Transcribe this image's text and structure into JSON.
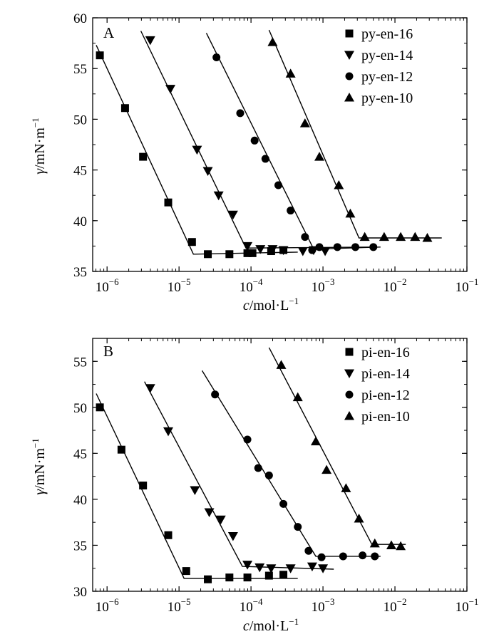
{
  "chart_data": [
    {
      "panel": "A",
      "type": "scatter",
      "x_scale": "log",
      "xlabel_var": "c",
      "xlabel_unit": "/mol·L",
      "xlabel_exp": "−1",
      "ylabel_var": "γ",
      "ylabel_unit": "/mN·m",
      "ylabel_exp": "−1",
      "xlim_exp": [
        -6.2,
        -1
      ],
      "ylim": [
        35,
        60
      ],
      "xticks": [
        {
          "exp": -6,
          "label": "10",
          "sup": "−6"
        },
        {
          "exp": -5,
          "label": "10",
          "sup": "−5"
        },
        {
          "exp": -4,
          "label": "10",
          "sup": "−4"
        },
        {
          "exp": -3,
          "label": "10",
          "sup": "−3"
        },
        {
          "exp": -2,
          "label": "10",
          "sup": "−2"
        },
        {
          "exp": -1,
          "label": "10",
          "sup": "−1"
        }
      ],
      "yticks": [
        {
          "value": 35,
          "label": "35"
        },
        {
          "value": 40,
          "label": "40"
        },
        {
          "value": 45,
          "label": "45"
        },
        {
          "value": 50,
          "label": "50"
        },
        {
          "value": 55,
          "label": "55"
        },
        {
          "value": 60,
          "label": "60"
        }
      ],
      "series": [
        {
          "name": "py-en-16",
          "marker": "square",
          "points": [
            [
              -6.1,
              56.3
            ],
            [
              -5.75,
              51.1
            ],
            [
              -5.5,
              46.3
            ],
            [
              -5.15,
              41.8
            ],
            [
              -4.82,
              37.9
            ],
            [
              -4.6,
              36.7
            ],
            [
              -4.3,
              36.7
            ],
            [
              -4.05,
              36.8
            ],
            [
              -3.98,
              36.8
            ],
            [
              -3.72,
              37.0
            ],
            [
              -3.55,
              37.1
            ]
          ],
          "fit": [
            [
              -6.15,
              57.3
            ],
            [
              -4.8,
              36.7
            ],
            [
              -3.35,
              36.9
            ]
          ]
        },
        {
          "name": "py-en-14",
          "marker": "triangle-down",
          "points": [
            [
              -5.4,
              57.8
            ],
            [
              -5.12,
              53.0
            ],
            [
              -4.75,
              47.0
            ],
            [
              -4.6,
              44.9
            ],
            [
              -4.45,
              42.5
            ],
            [
              -4.25,
              40.6
            ],
            [
              -4.05,
              37.5
            ],
            [
              -3.87,
              37.2
            ],
            [
              -3.7,
              37.2
            ],
            [
              -3.55,
              37.1
            ],
            [
              -3.28,
              37.0
            ],
            [
              -3.13,
              37.1
            ],
            [
              -2.97,
              37.0
            ]
          ],
          "fit": [
            [
              -5.53,
              58.7
            ],
            [
              -4.07,
              37.3
            ],
            [
              -2.3,
              37.4
            ]
          ]
        },
        {
          "name": "py-en-12",
          "marker": "circle",
          "points": [
            [
              -4.48,
              56.1
            ],
            [
              -4.15,
              50.6
            ],
            [
              -3.95,
              47.9
            ],
            [
              -3.8,
              46.1
            ],
            [
              -3.62,
              43.5
            ],
            [
              -3.45,
              41.0
            ],
            [
              -3.25,
              38.4
            ],
            [
              -3.15,
              37.1
            ],
            [
              -3.05,
              37.4
            ],
            [
              -2.8,
              37.4
            ],
            [
              -2.55,
              37.4
            ],
            [
              -2.3,
              37.4
            ]
          ],
          "fit": [
            [
              -4.62,
              58.5
            ],
            [
              -3.13,
              37.2
            ],
            [
              -2.2,
              37.4
            ]
          ]
        },
        {
          "name": "py-en-10",
          "marker": "triangle-up",
          "points": [
            [
              -3.7,
              57.6
            ],
            [
              -3.45,
              54.5
            ],
            [
              -3.25,
              49.6
            ],
            [
              -3.05,
              46.3
            ],
            [
              -2.78,
              43.5
            ],
            [
              -2.62,
              40.7
            ],
            [
              -2.42,
              38.4
            ],
            [
              -2.15,
              38.4
            ],
            [
              -1.92,
              38.4
            ],
            [
              -1.72,
              38.4
            ],
            [
              -1.55,
              38.3
            ]
          ],
          "fit": [
            [
              -3.75,
              58.8
            ],
            [
              -2.5,
              38.3
            ],
            [
              -1.35,
              38.3
            ]
          ]
        }
      ]
    },
    {
      "panel": "B",
      "type": "scatter",
      "x_scale": "log",
      "xlabel_var": "c",
      "xlabel_unit": "/mol·L",
      "xlabel_exp": "−1",
      "ylabel_var": "γ",
      "ylabel_unit": "/mN·m",
      "ylabel_exp": "−1",
      "xlim_exp": [
        -6.2,
        -1
      ],
      "ylim": [
        30,
        57.5
      ],
      "xticks": [
        {
          "exp": -6,
          "label": "10",
          "sup": "−6"
        },
        {
          "exp": -5,
          "label": "10",
          "sup": "−5"
        },
        {
          "exp": -4,
          "label": "10",
          "sup": "−4"
        },
        {
          "exp": -3,
          "label": "10",
          "sup": "−3"
        },
        {
          "exp": -2,
          "label": "10",
          "sup": "−2"
        },
        {
          "exp": -1,
          "label": "10",
          "sup": "−1"
        }
      ],
      "yticks": [
        {
          "value": 30,
          "label": "30"
        },
        {
          "value": 35,
          "label": "35"
        },
        {
          "value": 40,
          "label": "40"
        },
        {
          "value": 45,
          "label": "45"
        },
        {
          "value": 50,
          "label": "50"
        },
        {
          "value": 55,
          "label": "55"
        }
      ],
      "series": [
        {
          "name": "pi-en-16",
          "marker": "square",
          "points": [
            [
              -6.1,
              50.0
            ],
            [
              -5.8,
              45.4
            ],
            [
              -5.5,
              41.5
            ],
            [
              -5.15,
              36.1
            ],
            [
              -4.9,
              32.2
            ],
            [
              -4.6,
              31.3
            ],
            [
              -4.3,
              31.5
            ],
            [
              -4.05,
              31.5
            ],
            [
              -3.75,
              31.7
            ],
            [
              -3.55,
              31.8
            ]
          ],
          "fit": [
            [
              -6.15,
              51.5
            ],
            [
              -4.93,
              31.4
            ],
            [
              -3.35,
              31.4
            ]
          ]
        },
        {
          "name": "pi-en-14",
          "marker": "triangle-down",
          "points": [
            [
              -5.4,
              52.1
            ],
            [
              -5.15,
              47.4
            ],
            [
              -4.78,
              41.0
            ],
            [
              -4.58,
              38.6
            ],
            [
              -4.42,
              37.8
            ],
            [
              -4.25,
              36.0
            ],
            [
              -4.05,
              32.9
            ],
            [
              -3.88,
              32.6
            ],
            [
              -3.72,
              32.5
            ],
            [
              -3.45,
              32.5
            ],
            [
              -3.15,
              32.7
            ],
            [
              -3.0,
              32.5
            ]
          ],
          "fit": [
            [
              -5.48,
              52.8
            ],
            [
              -4.12,
              32.7
            ],
            [
              -2.85,
              32.4
            ]
          ]
        },
        {
          "name": "pi-en-12",
          "marker": "circle",
          "points": [
            [
              -4.5,
              51.4
            ],
            [
              -4.05,
              46.5
            ],
            [
              -3.9,
              43.4
            ],
            [
              -3.75,
              42.6
            ],
            [
              -3.55,
              39.5
            ],
            [
              -3.35,
              37.0
            ],
            [
              -3.2,
              34.4
            ],
            [
              -3.02,
              33.7
            ],
            [
              -2.72,
              33.8
            ],
            [
              -2.45,
              33.9
            ],
            [
              -2.28,
              33.8
            ]
          ],
          "fit": [
            [
              -4.68,
              54.0
            ],
            [
              -3.1,
              33.8
            ],
            [
              -2.2,
              33.8
            ]
          ]
        },
        {
          "name": "pi-en-10",
          "marker": "triangle-up",
          "points": [
            [
              -3.58,
              54.6
            ],
            [
              -3.35,
              51.1
            ],
            [
              -3.1,
              46.3
            ],
            [
              -2.95,
              43.2
            ],
            [
              -2.68,
              41.2
            ],
            [
              -2.5,
              37.9
            ],
            [
              -2.28,
              35.2
            ],
            [
              -2.05,
              35.0
            ],
            [
              -1.92,
              34.9
            ]
          ],
          "fit": [
            [
              -3.75,
              56.5
            ],
            [
              -2.32,
              35.1
            ],
            [
              -1.85,
              35.1
            ]
          ]
        }
      ]
    }
  ]
}
